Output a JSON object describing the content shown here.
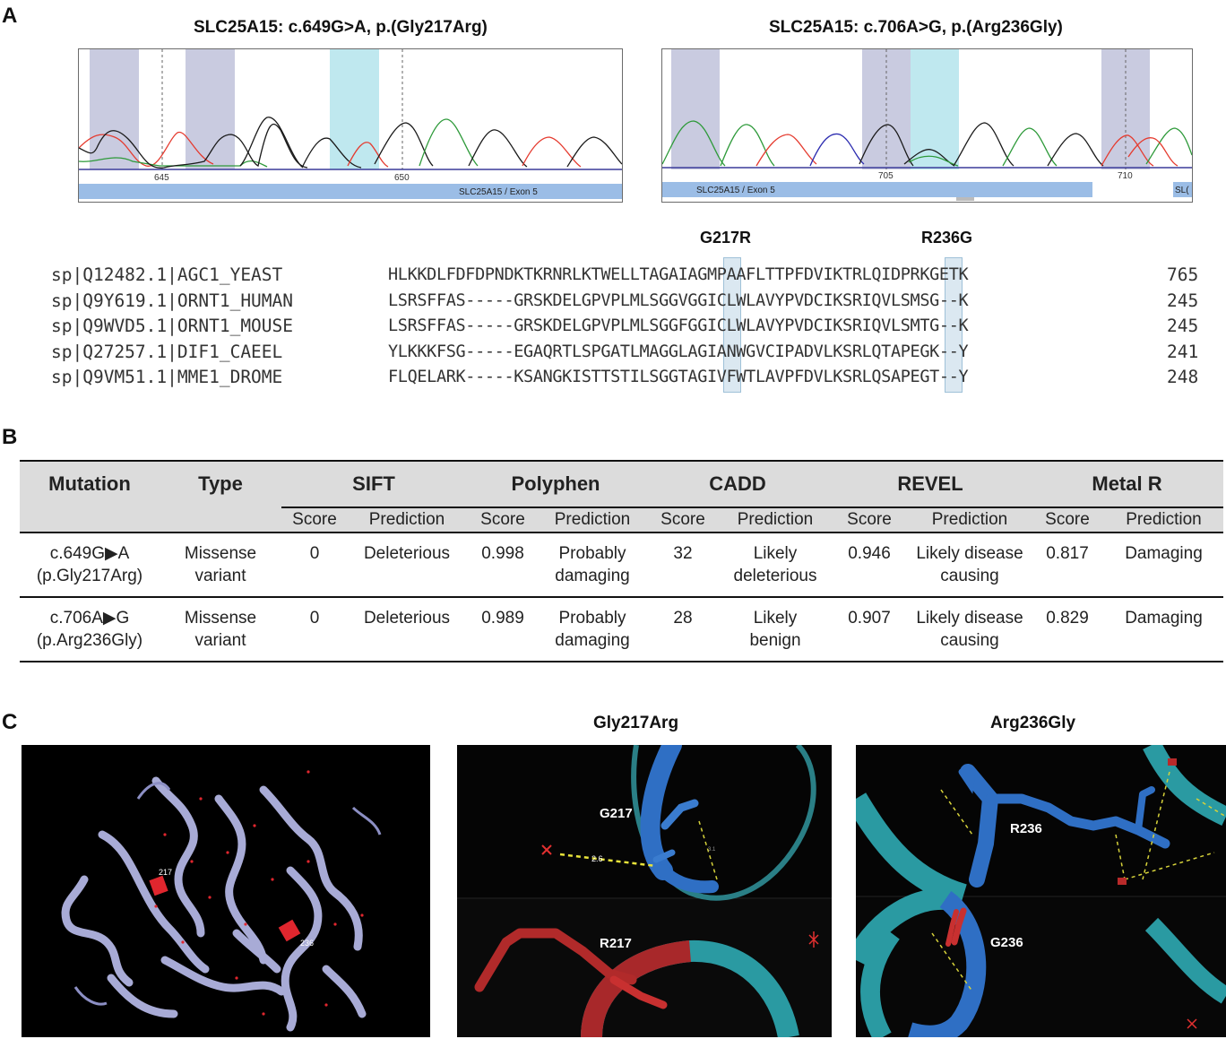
{
  "panels": {
    "a": "A",
    "b": "B",
    "c": "C"
  },
  "chromatograms": [
    {
      "title": "SLC25A15: c.649G>A, p.(Gly217Arg)",
      "ticks": [
        "645",
        "650"
      ],
      "exon_label": "SLC25A15 / Exon 5"
    },
    {
      "title": "SLC25A15: c.706A>G, p.(Arg236Gly)",
      "ticks": [
        "705",
        "710"
      ],
      "exon_label": "SLC25A15 / Exon 5",
      "exon_label_cut": "SL("
    }
  ],
  "alignment": {
    "mutations": [
      "G217R",
      "R236G"
    ],
    "rows": [
      {
        "id": "sp|Q12482.1|AGC1_YEAST",
        "seq": "HLKKDLFDFDPNDKTKRNRLKTWELLTAGAIAGMPAAFLTTPFDVIKTRLQIDPRKGETK",
        "pos": "765"
      },
      {
        "id": "sp|Q9Y619.1|ORNT1_HUMAN",
        "seq": "LSRSFFAS-----GRSKDELGPVPLMLSGGVGGICLWLAVYPVDCIKSRIQVLSMSG--K",
        "pos": "245"
      },
      {
        "id": "sp|Q9WVD5.1|ORNT1_MOUSE",
        "seq": "LSRSFFAS-----GRSKDELGPVPLMLSGGFGGICLWLAVYPVDCIKSRIQVLSMTG--K",
        "pos": "245"
      },
      {
        "id": "sp|Q27257.1|DIF1_CAEEL",
        "seq": "YLKKKFSG-----EGAQRTLSPGATLMAGGLAGIANWGVCIPADVLKSRLQTAPEGK--Y",
        "pos": "241"
      },
      {
        "id": "sp|Q9VM51.1|MME1_DROME",
        "seq": "FLQELARK-----KSANGKISTTSTILSGGTAGIVFWTLAVPFDVLKSRLQSAPEGT--Y",
        "pos": "248"
      }
    ]
  },
  "table": {
    "headers": {
      "mutation": "Mutation",
      "type": "Type",
      "groups": [
        "SIFT",
        "Polyphen",
        "CADD",
        "REVEL",
        "Metal R"
      ],
      "score": "Score",
      "prediction": "Prediction"
    },
    "rows": [
      {
        "mutation": [
          "c.649G▶A",
          "(p.Gly217Arg)"
        ],
        "type": [
          "Missense",
          "variant"
        ],
        "sift": [
          "0",
          "Deleterious"
        ],
        "polyphen": [
          "0.998",
          "Probably",
          "damaging"
        ],
        "cadd": [
          "32",
          "Likely",
          "deleterious"
        ],
        "revel": [
          "0.946",
          "Likely disease",
          "causing"
        ],
        "metalr": [
          "0.817",
          "Damaging"
        ]
      },
      {
        "mutation": [
          "c.706A▶G",
          "(p.Arg236Gly)"
        ],
        "type": [
          "Missense",
          "variant"
        ],
        "sift": [
          "0",
          "Deleterious"
        ],
        "polyphen": [
          "0.989",
          "Probably",
          "damaging"
        ],
        "cadd": [
          "28",
          "Likely",
          "benign"
        ],
        "revel": [
          "0.907",
          "Likely disease",
          "causing"
        ],
        "metalr": [
          "0.829",
          "Damaging"
        ]
      }
    ]
  },
  "structures": {
    "overview_labels": [
      "217",
      "236"
    ],
    "view_titles": [
      "Gly217Arg",
      "Arg236Gly"
    ],
    "gly217arg": {
      "wt": "G217",
      "mut": "R217",
      "dist": "2.6",
      "dist2": "3.1"
    },
    "arg236gly": {
      "wt": "R236",
      "mut": "G236"
    }
  }
}
